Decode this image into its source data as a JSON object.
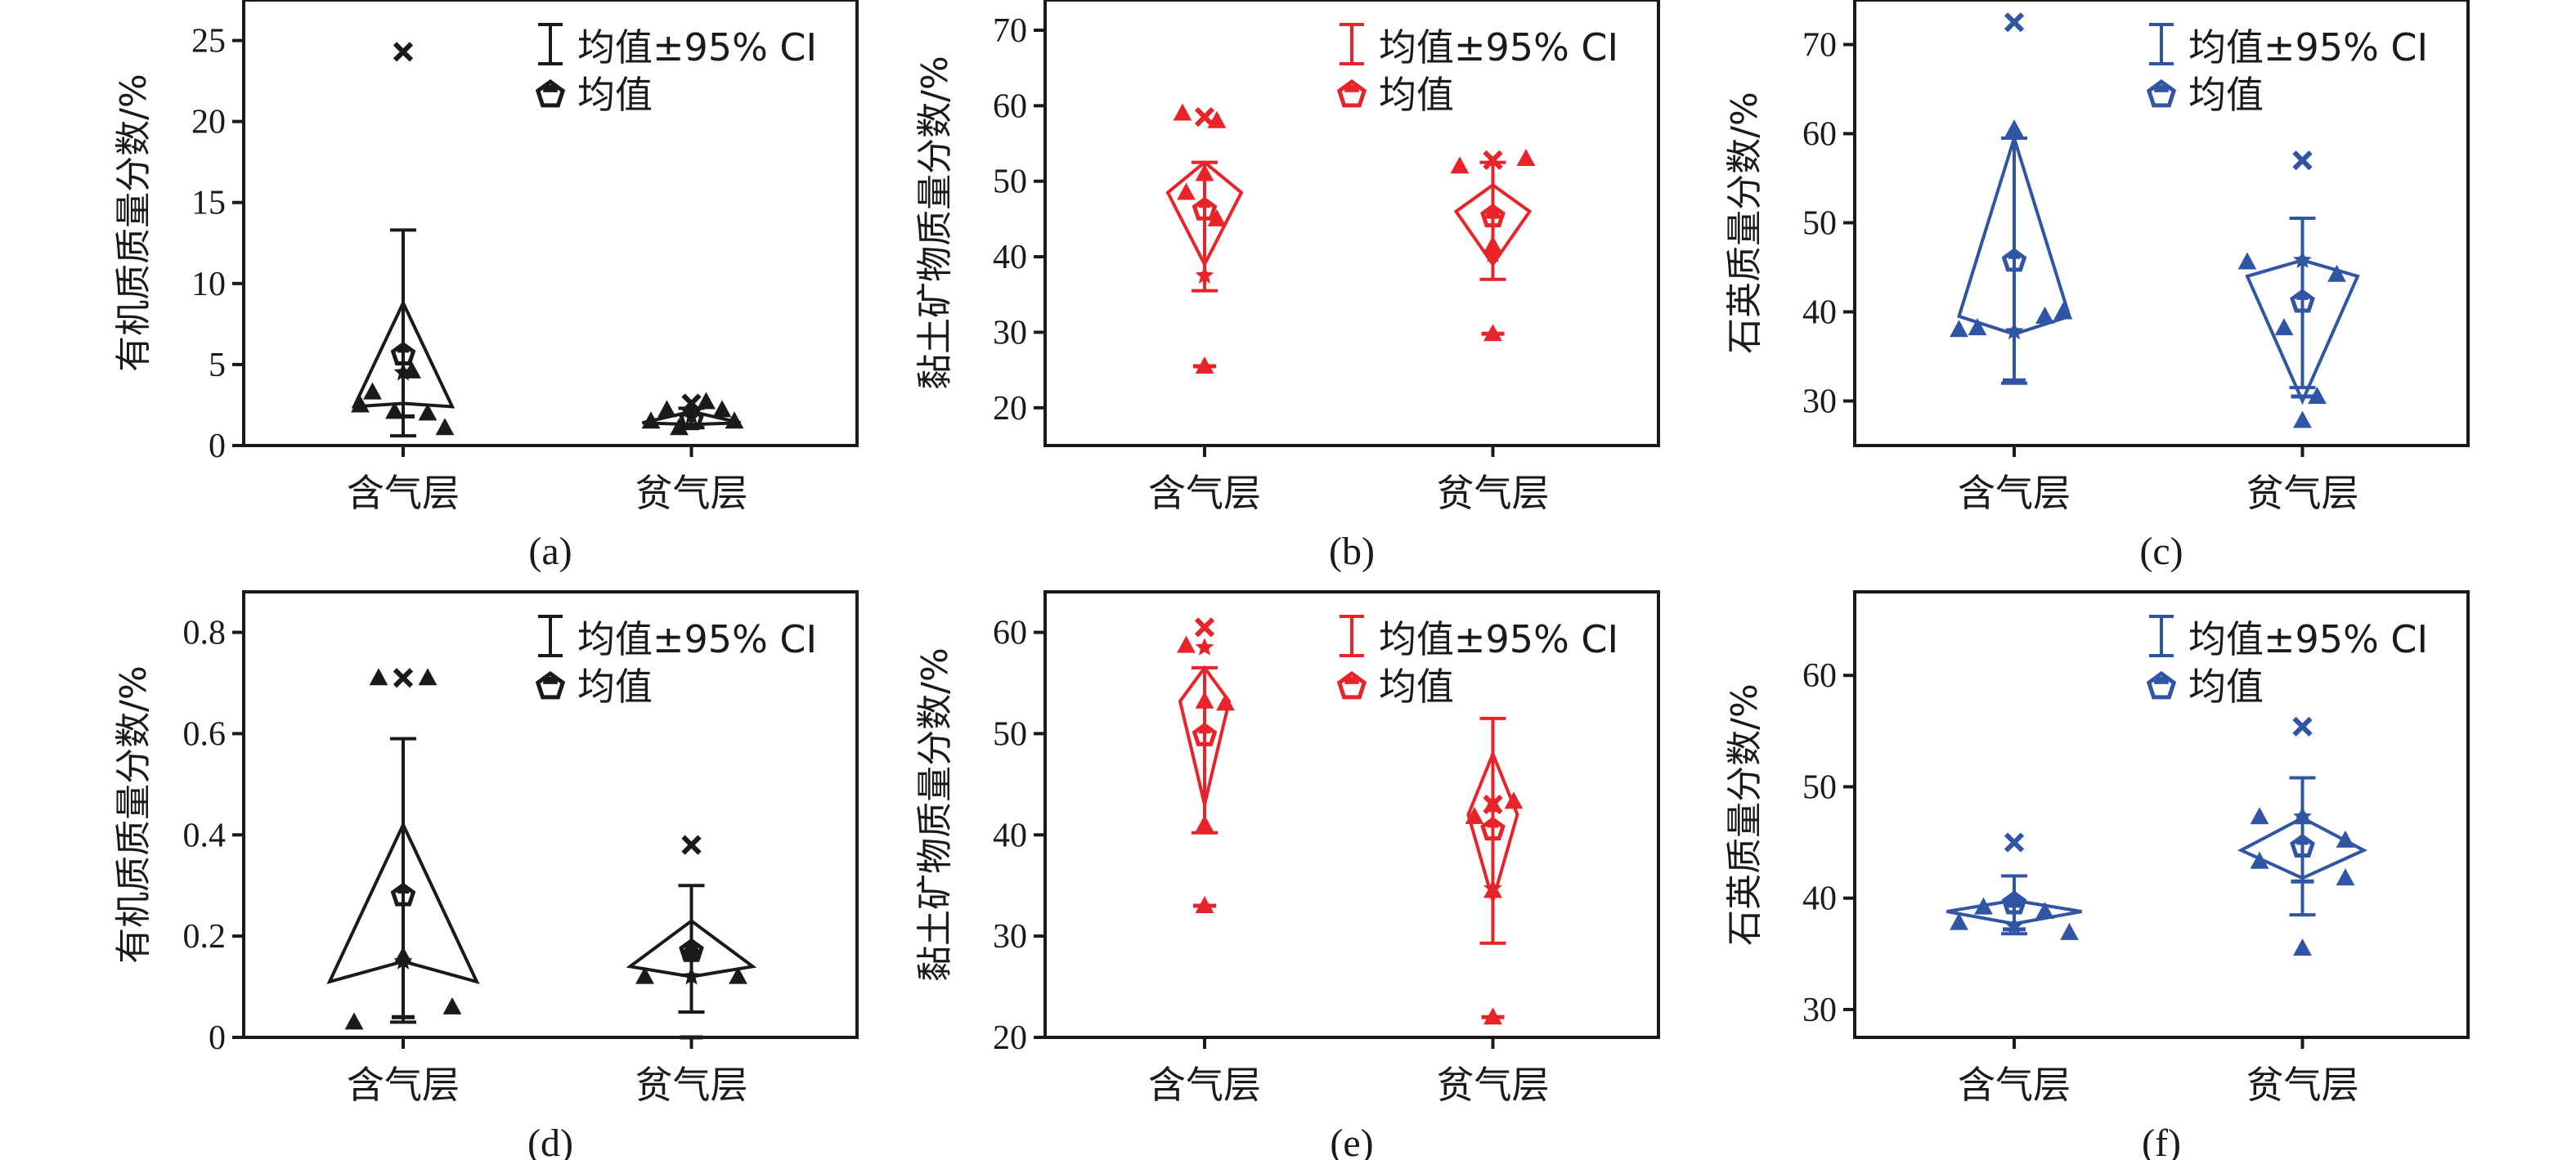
{
  "figure": {
    "categories": [
      "含气层",
      "贫气层"
    ],
    "legend": {
      "ci_label": "均值±95% CI",
      "mean_label": "均值"
    },
    "colors": {
      "black": "#1a1a1a",
      "red": "#e8242a",
      "blue": "#2f55a4"
    }
  },
  "chart_data": [
    {
      "panel": "(a)",
      "type": "scatter",
      "color": "black",
      "ylabel": "有机质质量分数/%",
      "ylim": [
        0,
        27.5
      ],
      "yticks": [
        0,
        5,
        10,
        15,
        20,
        25
      ],
      "categories": [
        "含气层",
        "贫气层"
      ],
      "series": [
        {
          "category": "含气层",
          "points": [
            {
              "x": -0.35,
              "y": 2.5
            },
            {
              "x": -0.25,
              "y": 3.3
            },
            {
              "x": -0.07,
              "y": 2.1
            },
            {
              "x": 0.07,
              "y": 4.6
            },
            {
              "x": 0.2,
              "y": 2.0
            },
            {
              "x": 0.34,
              "y": 1.1
            }
          ],
          "mean": 5.6,
          "ci_upper": 13.3,
          "ci_lower": 0.6,
          "max": 24.3,
          "min": 1.8,
          "median": 4.5,
          "box": {
            "top": 8.8,
            "left": 2.4,
            "right": 2.4,
            "bottom": 2.6,
            "left_x": -0.4,
            "right_x": 0.4
          }
        },
        {
          "category": "贫气层",
          "points": [
            {
              "x": -0.33,
              "y": 1.5
            },
            {
              "x": -0.2,
              "y": 2.2
            },
            {
              "x": -0.1,
              "y": 1.1
            },
            {
              "x": 0.12,
              "y": 2.7
            },
            {
              "x": 0.25,
              "y": 2.2
            },
            {
              "x": 0.35,
              "y": 1.5
            }
          ],
          "mean": 1.6,
          "ci_upper": 2.3,
          "ci_lower": 1.1,
          "max": 2.6,
          "min": 1.2,
          "median": 1.8,
          "box": {
            "top": 2.1,
            "left": 1.4,
            "right": 1.4,
            "bottom": 1.3,
            "left_x": -0.4,
            "right_x": 0.4
          }
        }
      ]
    },
    {
      "panel": "(b)",
      "type": "scatter",
      "color": "red",
      "ylabel": "黏土矿物质量分数/%",
      "ylim": [
        15,
        74
      ],
      "yticks": [
        20,
        30,
        40,
        50,
        60,
        70
      ],
      "categories": [
        "含气层",
        "贫气层"
      ],
      "series": [
        {
          "category": "含气层",
          "points": [
            {
              "x": -0.18,
              "y": 59
            },
            {
              "x": -0.15,
              "y": 48.5
            },
            {
              "x": 0.0,
              "y": 51
            },
            {
              "x": 0.0,
              "y": 25.5
            },
            {
              "x": 0.1,
              "y": 45
            },
            {
              "x": 0.1,
              "y": 58
            }
          ],
          "mean": 46.2,
          "ci_upper": 52.5,
          "ci_lower": 35.5,
          "max": 58.5,
          "min": 25.5,
          "median": 37.5,
          "box": {
            "top": 52.5,
            "left": 48.5,
            "right": 48.5,
            "bottom": 39,
            "left_x": -0.3,
            "right_x": 0.3
          }
        },
        {
          "category": "贫气层",
          "points": [
            {
              "x": -0.27,
              "y": 52
            },
            {
              "x": 0.0,
              "y": 46
            },
            {
              "x": 0.0,
              "y": 41.5
            },
            {
              "x": 0.0,
              "y": 29.8
            },
            {
              "x": 0.27,
              "y": 53
            }
          ],
          "mean": 45.3,
          "ci_upper": 52.5,
          "ci_lower": 37.0,
          "max": 52.8,
          "min": 29.8,
          "median": 40.3,
          "box": {
            "top": 49.5,
            "left": 46.0,
            "right": 46.0,
            "bottom": 39,
            "left_x": -0.3,
            "right_x": 0.3
          }
        }
      ]
    },
    {
      "panel": "(c)",
      "type": "scatter",
      "color": "blue",
      "ylabel": "石英质量分数/%",
      "ylim": [
        25,
        75
      ],
      "yticks": [
        30,
        40,
        50,
        60,
        70
      ],
      "categories": [
        "含气层",
        "贫气层"
      ],
      "series": [
        {
          "category": "含气层",
          "points": [
            {
              "x": -0.45,
              "y": 38
            },
            {
              "x": -0.3,
              "y": 38.2
            },
            {
              "x": 0.0,
              "y": 60.5
            },
            {
              "x": 0.25,
              "y": 39.5
            },
            {
              "x": 0.4,
              "y": 40
            }
          ],
          "mean": 45.7,
          "ci_upper": 59.5,
          "ci_lower": 32.0,
          "max": 72.5,
          "min": 32.3,
          "median": 37.8,
          "box": {
            "top": 59.5,
            "left": 39.5,
            "right": 39.5,
            "bottom": 37.5,
            "left_x": -0.45,
            "right_x": 0.45
          }
        },
        {
          "category": "贫气层",
          "points": [
            {
              "x": -0.45,
              "y": 45.6
            },
            {
              "x": -0.15,
              "y": 38.2
            },
            {
              "x": 0.0,
              "y": 27.8
            },
            {
              "x": 0.12,
              "y": 30.5
            },
            {
              "x": 0.28,
              "y": 44.2
            }
          ],
          "mean": 41.1,
          "ci_upper": 50.5,
          "ci_lower": 31.5,
          "max": 57.0,
          "min": 30.5,
          "median": 45.8,
          "box": {
            "top": 45.8,
            "left": 44.0,
            "right": 44.0,
            "bottom": 30.0,
            "left_x": -0.45,
            "right_x": 0.45
          }
        }
      ]
    },
    {
      "panel": "(d)",
      "type": "scatter",
      "color": "black",
      "ylabel": "有机质质量分数/%",
      "ylim": [
        0,
        0.88
      ],
      "yticks": [
        0,
        0.2,
        0.4,
        0.6,
        0.8
      ],
      "categories": [
        "含气层",
        "贫气层"
      ],
      "series": [
        {
          "category": "含气层",
          "points": [
            {
              "x": -0.4,
              "y": 0.03
            },
            {
              "x": -0.2,
              "y": 0.71
            },
            {
              "x": 0.0,
              "y": 0.16
            },
            {
              "x": 0.2,
              "y": 0.71
            },
            {
              "x": 0.4,
              "y": 0.06
            }
          ],
          "mean": 0.28,
          "ci_upper": 0.59,
          "ci_lower": 0.03,
          "max": 0.71,
          "min": 0.04,
          "median": 0.15,
          "box": {
            "top": 0.42,
            "left": 0.11,
            "right": 0.11,
            "bottom": 0.15,
            "left_x": -0.6,
            "right_x": 0.6
          }
        },
        {
          "category": "贫气层",
          "points": [
            {
              "x": -0.38,
              "y": 0.12
            },
            {
              "x": 0.0,
              "y": 0.18
            },
            {
              "x": 0.0,
              "y": 0.17
            },
            {
              "x": 0.38,
              "y": 0.12
            }
          ],
          "mean": 0.17,
          "ci_upper": 0.3,
          "ci_lower": 0.05,
          "max": 0.38,
          "min": 0.0,
          "median": 0.12,
          "box": {
            "top": 0.23,
            "left": 0.14,
            "right": 0.14,
            "bottom": 0.12,
            "left_x": -0.5,
            "right_x": 0.5
          }
        }
      ]
    },
    {
      "panel": "(e)",
      "type": "scatter",
      "color": "red",
      "ylabel": "黏土矿物质量分数/%",
      "ylim": [
        20,
        64
      ],
      "yticks": [
        20,
        30,
        40,
        50,
        60
      ],
      "categories": [
        "含气层",
        "贫气层"
      ],
      "series": [
        {
          "category": "含气层",
          "points": [
            {
              "x": -0.15,
              "y": 58.7
            },
            {
              "x": 0.0,
              "y": 53.2
            },
            {
              "x": 0.0,
              "y": 41
            },
            {
              "x": 0.0,
              "y": 33
            },
            {
              "x": 0.17,
              "y": 53
            }
          ],
          "mean": 49.8,
          "ci_upper": 56.5,
          "ci_lower": 40.2,
          "max": 60.5,
          "min": 33.0,
          "median": 58.5,
          "box": {
            "top": 56.5,
            "left": 53.2,
            "right": 53.2,
            "bottom": 43.0,
            "left_x": -0.2,
            "right_x": 0.2
          }
        },
        {
          "category": "贫气层",
          "points": [
            {
              "x": -0.15,
              "y": 41.8
            },
            {
              "x": 0.0,
              "y": 43.0
            },
            {
              "x": 0.0,
              "y": 34.5
            },
            {
              "x": 0.0,
              "y": 22
            },
            {
              "x": 0.17,
              "y": 43.3
            }
          ],
          "mean": 40.5,
          "ci_upper": 51.5,
          "ci_lower": 29.3,
          "max": 43.0,
          "min": 22.0,
          "median": 34.7,
          "box": {
            "top": 48.0,
            "left": 42.0,
            "right": 42.0,
            "bottom": 33.5,
            "left_x": -0.2,
            "right_x": 0.2
          }
        }
      ]
    },
    {
      "panel": "(f)",
      "type": "scatter",
      "color": "blue",
      "ylabel": "石英质量分数/%",
      "ylim": [
        27.5,
        67.5
      ],
      "yticks": [
        30,
        40,
        50,
        60
      ],
      "categories": [
        "含气层",
        "贫气层"
      ],
      "series": [
        {
          "category": "含气层",
          "points": [
            {
              "x": -0.45,
              "y": 37.8
            },
            {
              "x": -0.25,
              "y": 39.2
            },
            {
              "x": 0.0,
              "y": 39.8
            },
            {
              "x": 0.25,
              "y": 38.8
            },
            {
              "x": 0.45,
              "y": 36.9
            }
          ],
          "mean": 39.5,
          "ci_upper": 42.0,
          "ci_lower": 36.8,
          "max": 45.0,
          "min": 37.2,
          "median": 37.5,
          "box": {
            "top": 39.8,
            "left": 38.8,
            "right": 38.8,
            "bottom": 37.7,
            "left_x": -0.55,
            "right_x": 0.55
          }
        },
        {
          "category": "贫气层",
          "points": [
            {
              "x": -0.35,
              "y": 47.3
            },
            {
              "x": -0.35,
              "y": 43.3
            },
            {
              "x": 0.0,
              "y": 35.5
            },
            {
              "x": 0.0,
              "y": 47.3
            },
            {
              "x": 0.35,
              "y": 45.2
            },
            {
              "x": 0.35,
              "y": 41.8
            }
          ],
          "mean": 44.6,
          "ci_upper": 50.8,
          "ci_lower": 38.5,
          "max": 55.4,
          "min": 41.5,
          "median": 47.3,
          "box": {
            "top": 47.2,
            "left": 44.3,
            "right": 44.3,
            "bottom": 41.8,
            "left_x": -0.5,
            "right_x": 0.5
          }
        }
      ]
    }
  ]
}
